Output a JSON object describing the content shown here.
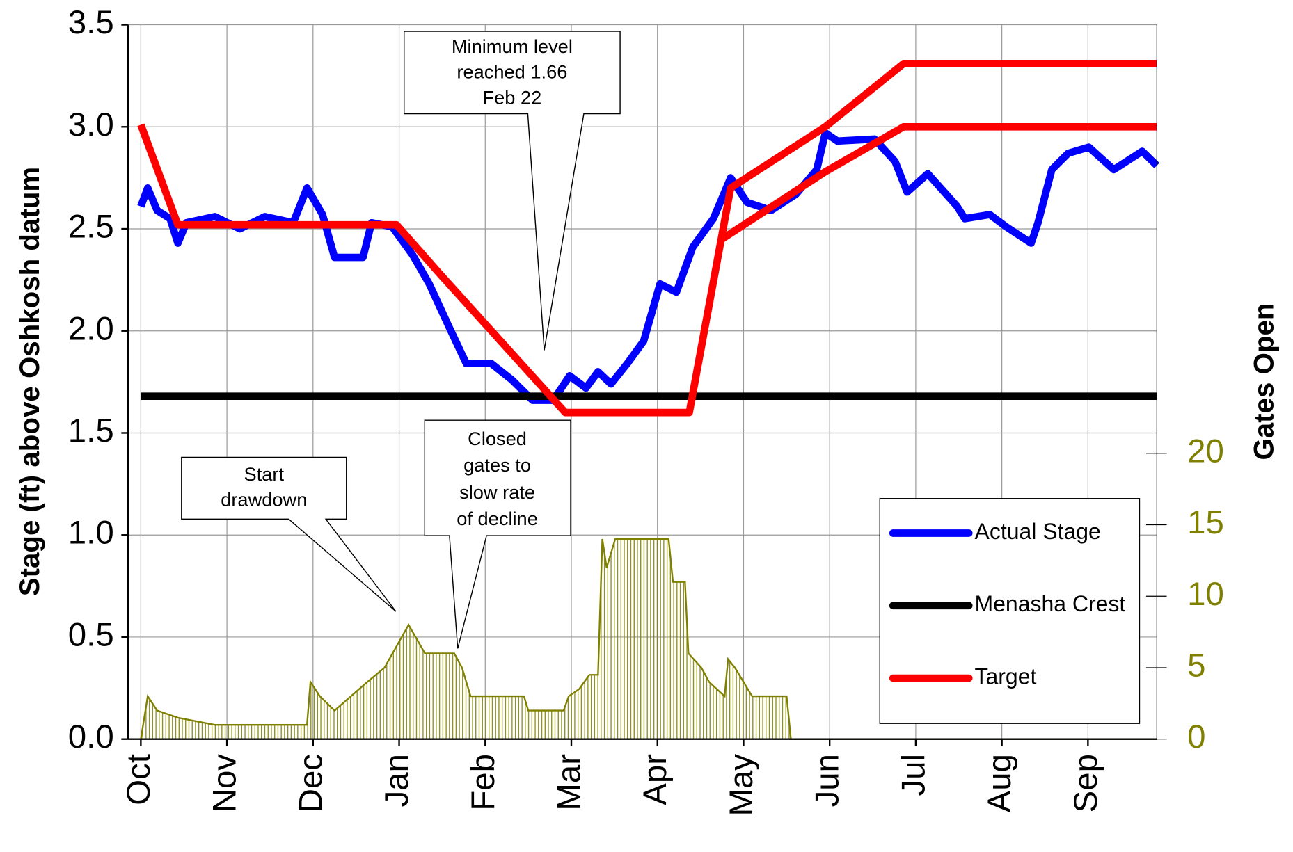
{
  "chart_data": {
    "type": "line",
    "y_label": "Stage (ft) above Oshkosh datum",
    "y2_label": "Gates Open",
    "xlim": [
      -0.15,
      11.8
    ],
    "xticks": [
      {
        "value": 0,
        "label": "Oct"
      },
      {
        "value": 1,
        "label": "Nov"
      },
      {
        "value": 2,
        "label": "Dec"
      },
      {
        "value": 3,
        "label": "Jan"
      },
      {
        "value": 4,
        "label": "Feb"
      },
      {
        "value": 5,
        "label": "Mar"
      },
      {
        "value": 6,
        "label": "Apr"
      },
      {
        "value": 7,
        "label": "May"
      },
      {
        "value": 8,
        "label": "Jun"
      },
      {
        "value": 9,
        "label": "Jul"
      },
      {
        "value": 10,
        "label": "Aug"
      },
      {
        "value": 11,
        "label": "Sep"
      }
    ],
    "ylim": [
      0,
      3.5
    ],
    "yticks": [
      {
        "value": 0,
        "label": "0.0"
      },
      0.5,
      {
        "value": 1,
        "label": "1.0"
      },
      1.5,
      {
        "value": 2,
        "label": "2.0"
      },
      2.5,
      {
        "value": 3,
        "label": "3.0"
      },
      3.5
    ],
    "y2lim": [
      0,
      50
    ],
    "y2ticks": [
      0,
      5,
      10,
      15,
      20
    ],
    "grid": true,
    "legend": "right",
    "series": [
      {
        "name": "Actual Stage",
        "color": "#0000ff",
        "x": [
          0,
          0.08,
          0.19,
          0.34,
          0.43,
          0.53,
          0.86,
          1.15,
          1.44,
          1.77,
          1.93,
          2.11,
          2.25,
          2.58,
          2.68,
          2.92,
          3.16,
          3.35,
          3.59,
          3.78,
          4.07,
          4.31,
          4.55,
          4.79,
          4.98,
          5.17,
          5.31,
          5.46,
          5.65,
          5.84,
          6.03,
          6.22,
          6.41,
          6.65,
          6.85,
          7.04,
          7.32,
          7.61,
          7.85,
          7.95,
          8.09,
          8.52,
          8.76,
          8.9,
          9.14,
          9.48,
          9.57,
          9.86,
          10.05,
          10.34,
          10.42,
          10.58,
          10.77,
          11.01,
          11.3,
          11.63,
          11.8
        ],
        "values": [
          2.61,
          2.7,
          2.59,
          2.55,
          2.43,
          2.53,
          2.56,
          2.5,
          2.56,
          2.53,
          2.7,
          2.57,
          2.36,
          2.36,
          2.53,
          2.51,
          2.37,
          2.23,
          2.01,
          1.84,
          1.84,
          1.76,
          1.66,
          1.66,
          1.78,
          1.72,
          1.8,
          1.74,
          1.84,
          1.95,
          2.23,
          2.19,
          2.41,
          2.55,
          2.75,
          2.63,
          2.59,
          2.67,
          2.79,
          2.97,
          2.93,
          2.94,
          2.83,
          2.68,
          2.77,
          2.61,
          2.55,
          2.57,
          2.51,
          2.43,
          2.53,
          2.79,
          2.87,
          2.9,
          2.79,
          2.88,
          2.81
        ]
      },
      {
        "name": "Menasha Crest",
        "color": "#000000",
        "x": [
          0,
          11.8
        ],
        "values": [
          1.68,
          1.68
        ]
      },
      {
        "name": "Target",
        "color": "#ff0000",
        "x": [
          0,
          0.43,
          2.97,
          3.45,
          4.93,
          6.37,
          6.85,
          7.95,
          8.86,
          11.8,
          null,
          6.75,
          7.95,
          8.86,
          11.8
        ],
        "values": [
          3.01,
          2.52,
          2.52,
          2.29,
          1.6,
          1.6,
          2.7,
          3.0,
          3.31,
          3.31,
          null,
          2.45,
          2.78,
          3.0,
          3.0
        ]
      },
      {
        "color": "#808000",
        "axis": "y2",
        "x": [
          0,
          0.08,
          0.19,
          0.43,
          0.86,
          1.93,
          1.97,
          2.08,
          2.25,
          2.63,
          2.83,
          3.11,
          3.3,
          3.64,
          3.73,
          3.83,
          4.45,
          4.5,
          4.91,
          4.97,
          5.09,
          5.21,
          5.31,
          5.36,
          5.41,
          5.51,
          6.13,
          6.18,
          6.32,
          6.36,
          6.51,
          6.6,
          6.78,
          6.82,
          6.9,
          7.1,
          7.5,
          7.55,
          11.8
        ],
        "values": [
          0,
          3,
          2,
          1.5,
          1,
          1,
          4,
          3,
          2,
          4,
          5,
          8,
          6,
          6,
          5,
          3,
          3,
          2,
          2,
          3,
          3.5,
          4.5,
          4.5,
          14,
          12,
          14,
          14,
          11,
          11,
          6,
          5,
          4,
          3,
          5.6,
          5,
          3,
          3,
          0,
          0
        ]
      }
    ],
    "annotations": [
      {
        "lines": [
          "Minimum level",
          "reached 1.66",
          "Feb 22"
        ]
      },
      {
        "lines": [
          "Start",
          "drawdown"
        ]
      },
      {
        "lines": [
          "Closed",
          "gates to",
          "slow rate",
          "of decline"
        ]
      }
    ]
  }
}
